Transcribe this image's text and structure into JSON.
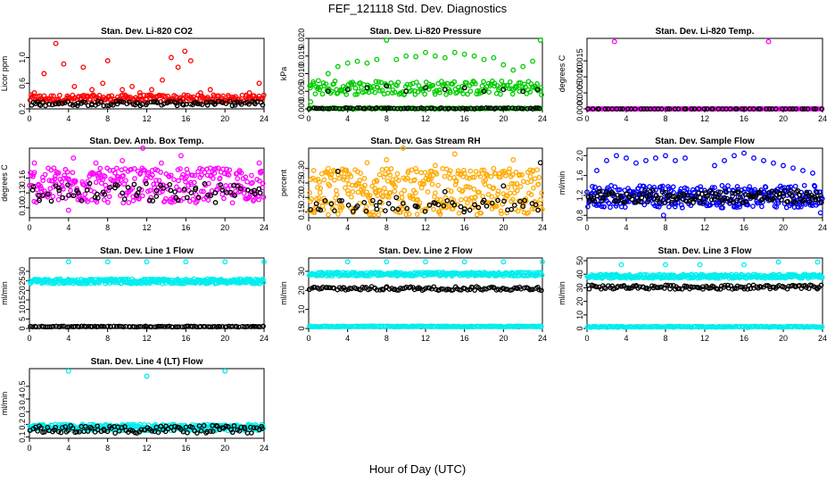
{
  "figure": {
    "title": "FEF_121118  Std. Dev. Diagnostics",
    "xlabel": "Hour of Day (UTC)"
  },
  "chart_data": [
    {
      "type": "scatter",
      "title": "Stan. Dev. Li-820 CO2",
      "ylabel": "Licor ppm",
      "xlim": [
        0,
        24
      ],
      "ylim": [
        0.2,
        1.3
      ],
      "xticks": [
        0,
        4,
        8,
        12,
        16,
        20,
        24
      ],
      "yticks": [
        0.2,
        0.6,
        1.0
      ],
      "yticklabels": [
        "0.2",
        "0.6",
        "1.0"
      ],
      "series": [
        {
          "color": "#ff0000",
          "x": [
            0.5,
            1.5,
            2.7,
            3.5,
            4.6,
            5.5,
            6.4,
            7.5,
            8.0,
            9.5,
            10.5,
            11.3,
            12.5,
            13.6,
            14.5,
            15.2,
            15.9,
            16.5,
            17.5,
            18.5,
            19.8,
            21.0,
            22.5,
            23.5
          ],
          "y": [
            0.45,
            0.75,
            1.22,
            0.9,
            0.55,
            0.85,
            0.5,
            0.6,
            0.95,
            0.5,
            0.55,
            0.45,
            0.5,
            0.65,
            1.0,
            0.85,
            1.1,
            0.95,
            0.45,
            0.5,
            0.4,
            0.35,
            0.45,
            0.6
          ],
          "band": [
            0.3,
            0.42
          ],
          "band_count": 220
        },
        {
          "color": "#000000",
          "x": [
            1,
            3,
            5,
            7,
            9,
            11,
            13,
            15,
            17,
            19,
            21,
            23
          ],
          "y": [
            0.27,
            0.3,
            0.29,
            0.32,
            0.28,
            0.3,
            0.31,
            0.29,
            0.3,
            0.28,
            0.29,
            0.3
          ],
          "band": [
            0.25,
            0.32
          ],
          "band_count": 90
        }
      ]
    },
    {
      "type": "scatter",
      "title": "Stan. Dev. Li-820 Pressure",
      "ylabel": "kPa",
      "xlim": [
        0,
        24
      ],
      "ylim": [
        0,
        0.02
      ],
      "xticks": [
        0,
        4,
        8,
        12,
        16,
        20,
        24
      ],
      "yticks": [
        0,
        0.005,
        0.01,
        0.015,
        0.02
      ],
      "yticklabels": [
        "0.000",
        "0.005",
        "0.010",
        "0.015",
        "0.020"
      ],
      "series": [
        {
          "color": "#00cc00",
          "x": [
            0.2,
            1,
            2,
            3,
            4,
            5,
            6,
            7,
            8,
            9,
            10,
            11,
            12,
            13,
            14,
            15,
            16,
            17,
            18,
            19,
            20,
            21,
            22,
            23,
            23.8
          ],
          "y": [
            0.002,
            0.008,
            0.01,
            0.012,
            0.013,
            0.0135,
            0.013,
            0.014,
            0.0195,
            0.014,
            0.015,
            0.0148,
            0.016,
            0.015,
            0.0145,
            0.016,
            0.0155,
            0.015,
            0.014,
            0.0145,
            0.0125,
            0.011,
            0.012,
            0.0135,
            0.0195
          ],
          "band": [
            0.004,
            0.008
          ],
          "band_count": 200
        },
        {
          "color": "#00cc00",
          "x": [],
          "y": [],
          "band": [
            0.0,
            0.0003
          ],
          "band_count": 120
        },
        {
          "color": "#000000",
          "x": [
            2,
            4,
            6,
            8,
            10,
            12,
            14,
            16,
            18,
            20,
            22,
            23.5
          ],
          "y": [
            0.005,
            0.0055,
            0.006,
            0.0065,
            0.005,
            0.006,
            0.0055,
            0.006,
            0.005,
            0.0055,
            0.005,
            0.0055
          ],
          "band": [
            0.0,
            0.0003
          ],
          "band_count": 80
        }
      ]
    },
    {
      "type": "scatter",
      "title": "Stan. Dev. Li-820 Temp.",
      "ylabel": "degrees C",
      "xlim": [
        0,
        24
      ],
      "ylim": [
        0,
        0.0022
      ],
      "xticks": [
        0,
        4,
        8,
        12,
        16,
        20,
        24
      ],
      "yticks": [
        0,
        0.0005,
        0.001,
        0.0015
      ],
      "yticklabels": [
        "0.0000",
        "0.0005",
        "0.0010",
        "0.0015"
      ],
      "series": [
        {
          "color": "#ff00ff",
          "x": [
            2.8,
            18.5
          ],
          "y": [
            0.0021,
            0.0021
          ],
          "band": [
            0.0,
            0.0
          ],
          "band_count": 160
        },
        {
          "color": "#000000",
          "x": [],
          "y": [],
          "band": [
            0.0,
            0.0
          ],
          "band_count": 60
        }
      ]
    },
    {
      "type": "scatter",
      "title": "Stan. Dev. Amb. Box Temp.",
      "ylabel": "degrees C",
      "xlim": [
        0,
        24
      ],
      "ylim": [
        0.08,
        0.22
      ],
      "xticks": [
        0,
        4,
        8,
        12,
        16,
        20,
        24
      ],
      "yticks": [
        0.1,
        0.13,
        0.16
      ],
      "yticklabels": [
        "0.10",
        "0.13",
        "0.16"
      ],
      "series": [
        {
          "color": "#ff00ff",
          "x": [
            0.5,
            2.5,
            4.5,
            6.8,
            9.5,
            11.6,
            13.5,
            15.5,
            18.5,
            21.5,
            23.5,
            4.0
          ],
          "y": [
            0.19,
            0.18,
            0.2,
            0.19,
            0.195,
            0.22,
            0.19,
            0.205,
            0.18,
            0.175,
            0.19,
            0.095
          ],
          "band": [
            0.11,
            0.18
          ],
          "band_count": 330
        },
        {
          "color": "#000000",
          "x": [
            1,
            3,
            5,
            7,
            9,
            11,
            13,
            15,
            17,
            19,
            21,
            23
          ],
          "y": [
            0.115,
            0.14,
            0.13,
            0.12,
            0.145,
            0.125,
            0.135,
            0.12,
            0.14,
            0.13,
            0.125,
            0.135
          ],
          "band": [
            0.11,
            0.15
          ],
          "band_count": 60
        }
      ]
    },
    {
      "type": "scatter",
      "title": "Stan. Dev. Gas Stream RH",
      "ylabel": "percent",
      "xlim": [
        0,
        24
      ],
      "ylim": [
        0.13,
        0.37
      ],
      "xticks": [
        0,
        4,
        8,
        12,
        16,
        20,
        24
      ],
      "yticks": [
        0.15,
        0.2,
        0.25,
        0.3
      ],
      "yticklabels": [
        "0.15",
        "0.20",
        "0.25",
        "0.30"
      ],
      "series": [
        {
          "color": "#ffaa00",
          "x": [
            2,
            4,
            6,
            8,
            9.7,
            11,
            13,
            15,
            17,
            19,
            21,
            23
          ],
          "y": [
            0.3,
            0.28,
            0.32,
            0.33,
            0.37,
            0.3,
            0.31,
            0.35,
            0.27,
            0.3,
            0.33,
            0.29
          ],
          "band": [
            0.14,
            0.3
          ],
          "band_count": 380
        },
        {
          "color": "#000000",
          "x": [
            1,
            3,
            5,
            7,
            9,
            11,
            13,
            14,
            16,
            18,
            20,
            22,
            23.8
          ],
          "y": [
            0.16,
            0.29,
            0.17,
            0.16,
            0.2,
            0.17,
            0.18,
            0.22,
            0.16,
            0.19,
            0.24,
            0.17,
            0.32
          ],
          "band": [
            0.15,
            0.19
          ],
          "band_count": 50
        }
      ]
    },
    {
      "type": "scatter",
      "title": "Stan. Dev. Sample Flow",
      "ylabel": "ml/min",
      "xlim": [
        0,
        24
      ],
      "ylim": [
        0.75,
        2.15
      ],
      "xticks": [
        0,
        4,
        8,
        12,
        16,
        20,
        24
      ],
      "yticks": [
        0.8,
        1.2,
        1.6,
        2.0
      ],
      "yticklabels": [
        "0.8",
        "1.2",
        "1.6",
        "2.0"
      ],
      "series": [
        {
          "color": "#0000ff",
          "x": [
            1,
            2,
            3,
            4,
            5,
            6,
            7,
            8,
            9,
            10,
            13,
            14,
            15,
            16,
            17,
            18,
            19,
            20,
            21,
            22,
            23,
            7.8,
            23.8
          ],
          "y": [
            1.7,
            1.9,
            2.0,
            1.95,
            1.85,
            1.9,
            1.95,
            2.0,
            1.9,
            1.95,
            1.8,
            1.9,
            2.0,
            2.05,
            1.95,
            1.9,
            1.85,
            1.8,
            1.75,
            1.7,
            1.65,
            0.8,
            0.85
          ],
          "band": [
            0.95,
            1.4
          ],
          "band_count": 330
        },
        {
          "color": "#000000",
          "x": [],
          "y": [],
          "band": [
            1.05,
            1.3
          ],
          "band_count": 160
        }
      ]
    },
    {
      "type": "scatter",
      "title": "Stan. Dev. Line 1 Flow",
      "ylabel": "ml/min",
      "xlim": [
        0,
        24
      ],
      "ylim": [
        0,
        37
      ],
      "xticks": [
        0,
        4,
        8,
        12,
        16,
        20,
        24
      ],
      "yticks": [
        0,
        5,
        10,
        15,
        20,
        25,
        30
      ],
      "yticklabels": [
        "0",
        "5",
        "10",
        "15",
        "20",
        "25",
        "30"
      ],
      "series": [
        {
          "color": "#00eeee",
          "x": [
            4,
            8,
            12,
            16,
            20,
            24
          ],
          "y": [
            35,
            35,
            35,
            35,
            35,
            35
          ],
          "band": [
            23.5,
            26
          ],
          "band_count": 360
        },
        {
          "color": "#000000",
          "x": [],
          "y": [],
          "band": [
            0.8,
            1.2
          ],
          "band_count": 110
        }
      ]
    },
    {
      "type": "scatter",
      "title": "Stan. Dev. Line 2 Flow",
      "ylabel": "ml/min",
      "xlim": [
        0,
        24
      ],
      "ylim": [
        0,
        37
      ],
      "xticks": [
        0,
        4,
        8,
        12,
        16,
        20,
        24
      ],
      "yticks": [
        0,
        10,
        20,
        30
      ],
      "yticklabels": [
        "0",
        "10",
        "20",
        "30"
      ],
      "series": [
        {
          "color": "#00eeee",
          "x": [
            4,
            8,
            12,
            16,
            20,
            24
          ],
          "y": [
            35,
            35,
            35,
            35,
            35,
            35
          ],
          "band": [
            27.5,
            29.5
          ],
          "band_count": 300
        },
        {
          "color": "#00eeee",
          "x": [],
          "y": [],
          "band": [
            0.8,
            1.3
          ],
          "band_count": 200
        },
        {
          "color": "#000000",
          "x": [],
          "y": [],
          "band": [
            20,
            22
          ],
          "band_count": 120
        }
      ]
    },
    {
      "type": "scatter",
      "title": "Stan. Dev. Line 3 Flow",
      "ylabel": "ml/min",
      "xlim": [
        0,
        24
      ],
      "ylim": [
        0,
        52
      ],
      "xticks": [
        0,
        4,
        8,
        12,
        16,
        20,
        24
      ],
      "yticks": [
        0,
        10,
        20,
        30,
        40,
        50
      ],
      "yticklabels": [
        "0",
        "10",
        "20",
        "30",
        "40",
        "50"
      ],
      "series": [
        {
          "color": "#00eeee",
          "x": [
            3.5,
            8,
            11.5,
            16,
            19.5,
            23.5
          ],
          "y": [
            47,
            47,
            47,
            47,
            49,
            49
          ],
          "band": [
            37,
            40
          ],
          "band_count": 320
        },
        {
          "color": "#00eeee",
          "x": [],
          "y": [],
          "band": [
            0.8,
            1.6
          ],
          "band_count": 200
        },
        {
          "color": "#000000",
          "x": [],
          "y": [],
          "band": [
            29,
            32
          ],
          "band_count": 130
        }
      ]
    },
    {
      "type": "scatter",
      "title": "Stan. Dev. Line 4 (LT) Flow",
      "ylabel": "ml/min",
      "xlim": [
        0,
        24
      ],
      "ylim": [
        0.09,
        0.64
      ],
      "xticks": [
        0,
        4,
        8,
        12,
        16,
        20,
        24
      ],
      "yticks": [
        0.1,
        0.2,
        0.3,
        0.4,
        0.5
      ],
      "yticklabels": [
        "0.1",
        "0.2",
        "0.3",
        "0.4",
        "0.5"
      ],
      "series": [
        {
          "color": "#00eeee",
          "x": [
            4,
            12,
            20
          ],
          "y": [
            0.62,
            0.58,
            0.62
          ],
          "band": [
            0.15,
            0.2
          ],
          "band_count": 320
        },
        {
          "color": "#000000",
          "x": [],
          "y": [],
          "band": [
            0.13,
            0.19
          ],
          "band_count": 110
        }
      ]
    }
  ]
}
